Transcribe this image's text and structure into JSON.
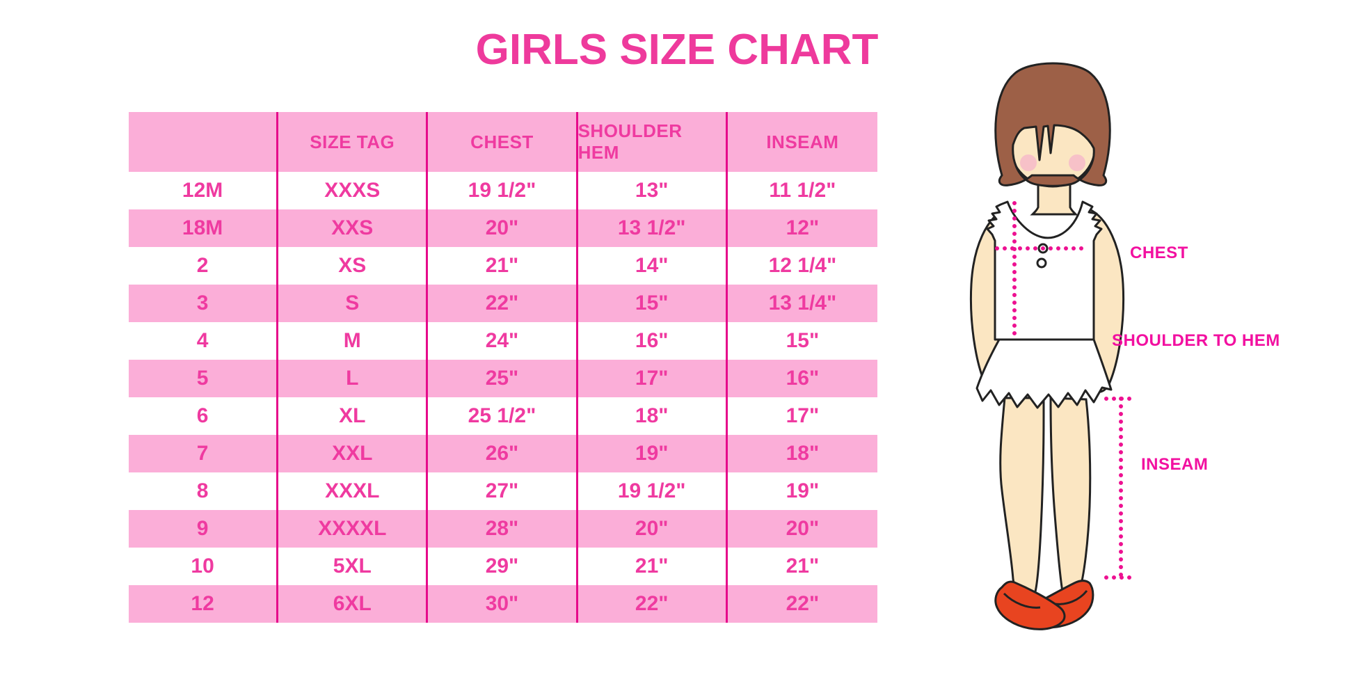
{
  "page": {
    "title": "GIRLS SIZE CHART"
  },
  "colors": {
    "title_pink": "#ee3a9c",
    "table_text_pink": "#ef3aa0",
    "row_pink": "#fbaed8",
    "divider_magenta": "#e60a8b",
    "label_magenta": "#f210a0",
    "dotted_line_magenta": "#ed1191",
    "skin": "#fbe6c2",
    "hair_brown": "#9d6047",
    "blush_pink": "#f6bcc9",
    "shoe_red": "#e84420"
  },
  "figure": {
    "chest_label": "CHEST",
    "shoulder_label": "SHOULDER TO HEM",
    "inseam_label": "INSEAM"
  },
  "chart_data": {
    "type": "table",
    "title": "GIRLS SIZE CHART",
    "headers": [
      "",
      "SIZE TAG",
      "CHEST",
      "SHOULDER HEM",
      "INSEAM"
    ],
    "rows": [
      [
        "12M",
        "XXXS",
        "19 1/2\"",
        "13\"",
        "11 1/2\""
      ],
      [
        "18M",
        "XXS",
        "20\"",
        "13 1/2\"",
        "12\""
      ],
      [
        "2",
        "XS",
        "21\"",
        "14\"",
        "12 1/4\""
      ],
      [
        "3",
        "S",
        "22\"",
        "15\"",
        "13 1/4\""
      ],
      [
        "4",
        "M",
        "24\"",
        "16\"",
        "15\""
      ],
      [
        "5",
        "L",
        "25\"",
        "17\"",
        "16\""
      ],
      [
        "6",
        "XL",
        "25 1/2\"",
        "18\"",
        "17\""
      ],
      [
        "7",
        "XXL",
        "26\"",
        "19\"",
        "18\""
      ],
      [
        "8",
        "XXXL",
        "27\"",
        "19 1/2\"",
        "19\""
      ],
      [
        "9",
        "XXXXL",
        "28\"",
        "20\"",
        "20\""
      ],
      [
        "10",
        "5XL",
        "29\"",
        "21\"",
        "21\""
      ],
      [
        "12",
        "6XL",
        "30\"",
        "22\"",
        "22\""
      ]
    ],
    "row_striping": [
      "white",
      "pink",
      "white",
      "pink",
      "white",
      "pink",
      "white",
      "pink",
      "white",
      "pink",
      "white",
      "pink"
    ],
    "legend_position": "none",
    "grid": "vertical-dividers-only"
  }
}
